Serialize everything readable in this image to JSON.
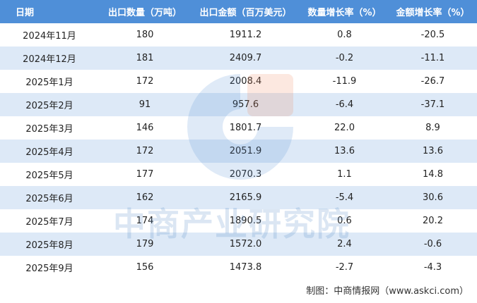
{
  "table": {
    "header": [
      "日期",
      "出口数量（万吨）",
      "出口金额（百万美元）",
      "数量增长率（%）",
      "金额增长率（%）"
    ],
    "rows": [
      [
        "2024年11月",
        "180",
        "1911.2",
        "0.8",
        "-20.5"
      ],
      [
        "2024年12月",
        "181",
        "2409.7",
        "-0.2",
        "-11.1"
      ],
      [
        "2025年1月",
        "172",
        "2008.4",
        "-11.9",
        "-26.7"
      ],
      [
        "2025年2月",
        "91",
        "957.6",
        "-6.4",
        "-37.1"
      ],
      [
        "2025年3月",
        "146",
        "1801.7",
        "22.0",
        "8.9"
      ],
      [
        "2025年4月",
        "172",
        "2051.9",
        "13.6",
        "13.6"
      ],
      [
        "2025年5月",
        "177",
        "2070.3",
        "1.1",
        "14.8"
      ],
      [
        "2025年6月",
        "162",
        "2165.9",
        "-5.4",
        "30.6"
      ],
      [
        "2025年7月",
        "174",
        "1890.5",
        "0.6",
        "20.2"
      ],
      [
        "2025年8月",
        "179",
        "1572.0",
        "2.4",
        "-0.6"
      ],
      [
        "2025年9月",
        "156",
        "1473.8",
        "-2.7",
        "-4.3"
      ]
    ]
  },
  "watermark": "中商产业研究院",
  "footer": "制图：中商情报网（www.askci.com）"
}
